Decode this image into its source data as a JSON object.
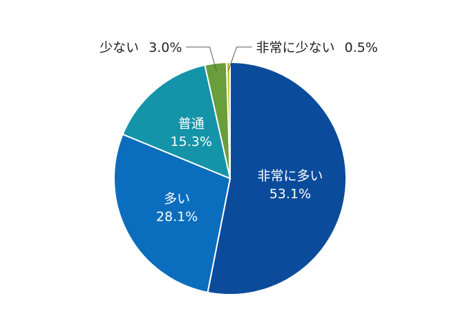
{
  "chart_data": {
    "type": "pie",
    "title": "",
    "start_angle_deg": 0,
    "direction": "clockwise",
    "slices": [
      {
        "label": "非常に多い",
        "value": 53.1,
        "value_label": "53.1%",
        "color": "#0a4c9b",
        "label_position": "inside"
      },
      {
        "label": "多い",
        "value": 28.1,
        "value_label": "28.1%",
        "color": "#0b6dbd",
        "label_position": "inside"
      },
      {
        "label": "普通",
        "value": 15.3,
        "value_label": "15.3%",
        "color": "#1493a9",
        "label_position": "inside"
      },
      {
        "label": "少ない",
        "value": 3.0,
        "value_label": "3.0%",
        "color": "#6a9d3b",
        "label_position": "outside-left"
      },
      {
        "label": "非常に少ない",
        "value": 0.5,
        "value_label": "0.5%",
        "color": "#c7c433",
        "label_position": "outside-right"
      }
    ]
  }
}
